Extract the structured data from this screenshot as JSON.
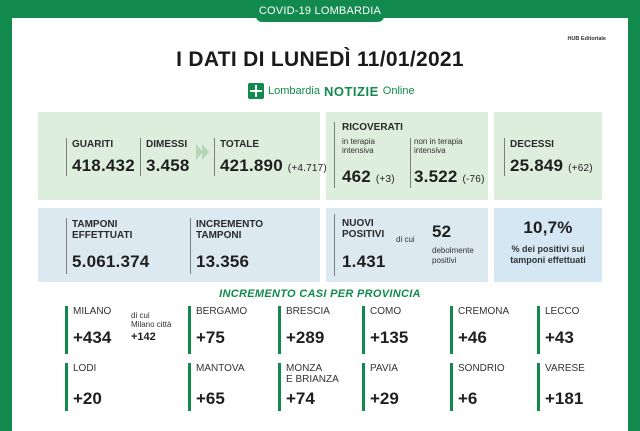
{
  "header": {
    "tab": "COVID-19 LOMBARDIA",
    "hub": "HUB Editoriale",
    "title": "I DATI DI LUNEDÌ 11/01/2021",
    "logo_name": "Lombardia",
    "logo_notizie": "NOTIZIE",
    "logo_online": "Online"
  },
  "guariti": {
    "label": "GUARITI",
    "value": "418.432"
  },
  "dimessi": {
    "label": "DIMESSI",
    "value": "3.458"
  },
  "totale": {
    "label": "TOTALE",
    "value": "421.890",
    "delta": "(+4.717)"
  },
  "ricoverati": {
    "label": "RICOVERATI",
    "ti_label_1": "in terapia",
    "ti_label_2": "intensiva",
    "ti_value": "462",
    "ti_delta": "(+3)",
    "nti_label_1": "non in terapia",
    "nti_label_2": "intensiva",
    "nti_value": "3.522",
    "nti_delta": "(-76)"
  },
  "decessi": {
    "label": "DECESSI",
    "value": "25.849",
    "delta": "(+62)"
  },
  "tamponi": {
    "label_1": "TAMPONI",
    "label_2": "EFFETTUATI",
    "value": "5.061.374"
  },
  "incremento": {
    "label_1": "INCREMENTO",
    "label_2": "TAMPONI",
    "value": "13.356"
  },
  "nuovi": {
    "label_1": "NUOVI",
    "label_2": "POSITIVI",
    "value": "1.431",
    "di_cui": "di cui",
    "deb_value": "52",
    "deb_label_1": "debolmente",
    "deb_label_2": "positivi"
  },
  "percent": {
    "value": "10,7%",
    "label_1": "% dei positivi sui",
    "label_2": "tamponi effettuati"
  },
  "province": {
    "title": "INCREMENTO CASI PER PROVINCIA",
    "milano": {
      "name": "MILANO",
      "value": "+434",
      "sub_1": "di cui",
      "sub_2": "Milano città",
      "sub_value": "+142"
    },
    "bergamo": {
      "name": "BERGAMO",
      "value": "+75"
    },
    "brescia": {
      "name": "BRESCIA",
      "value": "+289"
    },
    "como": {
      "name": "COMO",
      "value": "+135"
    },
    "cremona": {
      "name": "CREMONA",
      "value": "+46"
    },
    "lecco": {
      "name": "LECCO",
      "value": "+43"
    },
    "lodi": {
      "name": "LODI",
      "value": "+20"
    },
    "mantova": {
      "name": "MANTOVA",
      "value": "+65"
    },
    "monza": {
      "name_1": "MONZA",
      "name_2": "E BRIANZA",
      "value": "+74"
    },
    "pavia": {
      "name": "PAVIA",
      "value": "+29"
    },
    "sondrio": {
      "name": "SONDRIO",
      "value": "+6"
    },
    "varese": {
      "name": "VARESE",
      "value": "+181"
    }
  }
}
